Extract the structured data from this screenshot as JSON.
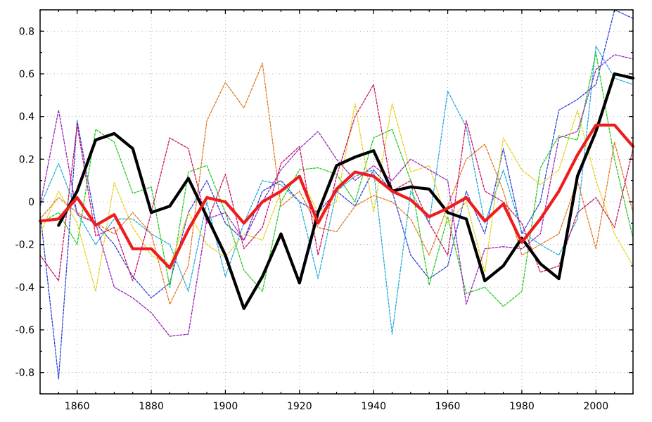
{
  "chart_data": {
    "type": "line",
    "title": "",
    "xlabel": "",
    "ylabel": "",
    "xlim": [
      1850,
      2010
    ],
    "ylim": [
      -0.9,
      0.9
    ],
    "grid": true,
    "x_ticks": [
      1860,
      1880,
      1900,
      1920,
      1940,
      1960,
      1980,
      2000
    ],
    "y_ticks": [
      -0.8,
      -0.6,
      -0.4,
      -0.2,
      0,
      0.2,
      0.4,
      0.6,
      0.8
    ],
    "x_tick_labels": [
      "1860",
      "1880",
      "1900",
      "1920",
      "1940",
      "1960",
      "1980",
      "2000"
    ],
    "y_tick_labels": [
      "-0.8",
      "-0.6",
      "-0.4",
      "-0.2",
      "0",
      "0.2",
      "0.4",
      "0.6",
      "0.8"
    ],
    "series": [
      {
        "color": "#2b3fd6",
        "style": "dashed",
        "width": 1.3,
        "x": [
          1850,
          1855,
          1860,
          1865,
          1870,
          1875,
          1880,
          1885,
          1890,
          1895,
          1900,
          1905,
          1910,
          1915,
          1920,
          1925,
          1930,
          1935,
          1940,
          1945,
          1950,
          1955,
          1960,
          1965,
          1970,
          1975,
          1980,
          1985,
          1990,
          1995,
          2000,
          2005,
          2010
        ],
        "y": [
          -0.05,
          -0.83,
          0.38,
          -0.1,
          -0.2,
          -0.35,
          -0.45,
          -0.38,
          -0.05,
          0.1,
          -0.1,
          -0.18,
          0.05,
          0.1,
          0.0,
          -0.05,
          0.05,
          -0.02,
          0.15,
          0.05,
          -0.25,
          -0.36,
          -0.3,
          0.05,
          -0.15,
          0.25,
          -0.15,
          0.0,
          0.43,
          0.48,
          0.55,
          0.9,
          0.86
        ]
      },
      {
        "color": "#22aadd",
        "style": "dashed",
        "width": 1.3,
        "x": [
          1850,
          1855,
          1860,
          1865,
          1870,
          1875,
          1880,
          1885,
          1890,
          1895,
          1900,
          1905,
          1910,
          1915,
          1920,
          1925,
          1930,
          1935,
          1940,
          1945,
          1950,
          1955,
          1960,
          1965,
          1970,
          1975,
          1980,
          1985,
          1990,
          1995,
          2000,
          2005,
          2010
        ],
        "y": [
          -0.02,
          0.18,
          -0.05,
          -0.2,
          -0.08,
          -0.08,
          -0.15,
          -0.2,
          -0.42,
          0.0,
          -0.35,
          -0.1,
          0.1,
          0.08,
          0.0,
          -0.36,
          0.05,
          0.12,
          0.15,
          -0.62,
          0.05,
          -0.1,
          0.52,
          0.35,
          -0.1,
          0.15,
          -0.14,
          -0.2,
          -0.25,
          -0.08,
          0.73,
          0.58,
          0.55
        ]
      },
      {
        "color": "#22cc22",
        "style": "dashed",
        "width": 1.3,
        "x": [
          1850,
          1855,
          1860,
          1865,
          1870,
          1875,
          1880,
          1885,
          1890,
          1895,
          1900,
          1905,
          1910,
          1915,
          1920,
          1925,
          1930,
          1935,
          1940,
          1945,
          1950,
          1955,
          1960,
          1965,
          1970,
          1975,
          1980,
          1985,
          1990,
          1995,
          2000,
          2005,
          2010
        ],
        "y": [
          -0.1,
          -0.05,
          -0.2,
          0.34,
          0.28,
          0.04,
          0.07,
          -0.4,
          0.14,
          0.17,
          -0.05,
          -0.32,
          -0.42,
          0.0,
          0.15,
          0.16,
          0.13,
          0.0,
          0.3,
          0.34,
          0.1,
          -0.39,
          -0.07,
          -0.43,
          -0.4,
          -0.49,
          -0.42,
          0.16,
          0.31,
          0.29,
          0.7,
          0.2,
          -0.17
        ]
      },
      {
        "color": "#e6d21a",
        "style": "dashed",
        "width": 1.3,
        "x": [
          1850,
          1855,
          1860,
          1865,
          1870,
          1875,
          1880,
          1885,
          1890,
          1895,
          1900,
          1905,
          1910,
          1915,
          1920,
          1925,
          1930,
          1935,
          1940,
          1945,
          1950,
          1955,
          1960,
          1965,
          1970,
          1975,
          1980,
          1985,
          1990,
          1995,
          2000,
          2005,
          2010
        ],
        "y": [
          -0.15,
          0.05,
          -0.1,
          -0.42,
          0.09,
          -0.12,
          -0.25,
          -0.3,
          -0.05,
          -0.2,
          -0.26,
          -0.15,
          -0.18,
          0.05,
          0.12,
          -0.05,
          0.0,
          0.46,
          -0.05,
          0.46,
          0.14,
          0.17,
          -0.1,
          0.0,
          -0.33,
          0.3,
          0.15,
          0.08,
          0.15,
          0.43,
          0.1,
          -0.15,
          -0.3
        ]
      },
      {
        "color": "#e07a1f",
        "style": "dashed",
        "width": 1.3,
        "x": [
          1850,
          1855,
          1860,
          1865,
          1870,
          1875,
          1880,
          1885,
          1890,
          1895,
          1900,
          1905,
          1910,
          1915,
          1920,
          1925,
          1930,
          1935,
          1940,
          1945,
          1950,
          1955,
          1960,
          1965,
          1970,
          1975,
          1980,
          1985,
          1990,
          1995,
          2000,
          2005,
          2010
        ],
        "y": [
          -0.08,
          0.02,
          -0.05,
          -0.1,
          -0.15,
          -0.05,
          -0.15,
          -0.48,
          -0.3,
          0.38,
          0.56,
          0.44,
          0.65,
          -0.02,
          0.05,
          -0.12,
          -0.14,
          -0.02,
          0.03,
          0.0,
          -0.08,
          -0.25,
          -0.02,
          0.2,
          0.27,
          0.05,
          -0.25,
          -0.2,
          -0.15,
          0.1,
          -0.22,
          0.28,
          -0.05
        ]
      },
      {
        "color": "#cc1166",
        "style": "dashed",
        "width": 1.3,
        "x": [
          1850,
          1855,
          1860,
          1865,
          1870,
          1875,
          1880,
          1885,
          1890,
          1895,
          1900,
          1905,
          1910,
          1915,
          1920,
          1925,
          1930,
          1935,
          1940,
          1945,
          1950,
          1955,
          1960,
          1965,
          1970,
          1975,
          1980,
          1985,
          1990,
          1995,
          2000,
          2005,
          2010
        ],
        "y": [
          -0.25,
          -0.37,
          0.36,
          -0.16,
          -0.12,
          -0.37,
          -0.05,
          0.3,
          0.25,
          -0.1,
          0.13,
          -0.22,
          -0.12,
          0.18,
          0.26,
          -0.25,
          0.12,
          0.4,
          0.55,
          0.05,
          0.1,
          -0.1,
          -0.25,
          0.38,
          0.05,
          0.0,
          -0.1,
          -0.33,
          -0.3,
          -0.05,
          0.02,
          -0.12,
          0.25
        ]
      },
      {
        "color": "#9922bb",
        "style": "dashed",
        "width": 1.3,
        "x": [
          1850,
          1855,
          1860,
          1865,
          1870,
          1875,
          1880,
          1885,
          1890,
          1895,
          1900,
          1905,
          1910,
          1915,
          1920,
          1925,
          1930,
          1935,
          1940,
          1945,
          1950,
          1955,
          1960,
          1965,
          1970,
          1975,
          1980,
          1985,
          1990,
          1995,
          2000,
          2005,
          2010
        ],
        "y": [
          -0.02,
          0.43,
          -0.06,
          -0.1,
          -0.4,
          -0.45,
          -0.52,
          -0.63,
          -0.62,
          -0.08,
          -0.05,
          -0.18,
          0.0,
          0.15,
          0.25,
          0.33,
          0.2,
          0.1,
          0.17,
          0.1,
          0.2,
          0.15,
          0.1,
          -0.48,
          -0.22,
          -0.21,
          -0.22,
          -0.15,
          0.3,
          0.33,
          0.62,
          0.69,
          0.67
        ]
      },
      {
        "color": "#000000",
        "style": "solid",
        "width": 4.2,
        "x": [
          1855,
          1860,
          1865,
          1870,
          1875,
          1880,
          1885,
          1890,
          1895,
          1900,
          1905,
          1910,
          1915,
          1920,
          1925,
          1930,
          1935,
          1940,
          1945,
          1950,
          1955,
          1960,
          1965,
          1970,
          1975,
          1980,
          1985,
          1990,
          1995,
          2000,
          2005,
          2010
        ],
        "y": [
          -0.11,
          0.05,
          0.29,
          0.32,
          0.25,
          -0.05,
          -0.02,
          0.11,
          -0.07,
          -0.25,
          -0.5,
          -0.35,
          -0.15,
          -0.38,
          -0.05,
          0.17,
          0.21,
          0.24,
          0.05,
          0.07,
          0.06,
          -0.05,
          -0.08,
          -0.37,
          -0.3,
          -0.17,
          -0.29,
          -0.36,
          0.12,
          0.33,
          0.6,
          0.58
        ]
      },
      {
        "color": "#ee1c1c",
        "style": "solid",
        "width": 4.2,
        "x": [
          1850,
          1855,
          1860,
          1865,
          1870,
          1875,
          1880,
          1885,
          1890,
          1895,
          1900,
          1905,
          1910,
          1915,
          1920,
          1925,
          1930,
          1935,
          1940,
          1945,
          1950,
          1955,
          1960,
          1965,
          1970,
          1975,
          1980,
          1985,
          1990,
          1995,
          2000,
          2005,
          2010
        ],
        "y": [
          -0.09,
          -0.08,
          0.02,
          -0.11,
          -0.06,
          -0.22,
          -0.22,
          -0.31,
          -0.13,
          0.02,
          0.0,
          -0.1,
          0.0,
          0.05,
          0.12,
          -0.1,
          0.06,
          0.14,
          0.12,
          0.05,
          0.01,
          -0.07,
          -0.03,
          0.02,
          -0.09,
          -0.01,
          -0.19,
          -0.08,
          0.05,
          0.22,
          0.36,
          0.36,
          0.26
        ]
      }
    ]
  }
}
